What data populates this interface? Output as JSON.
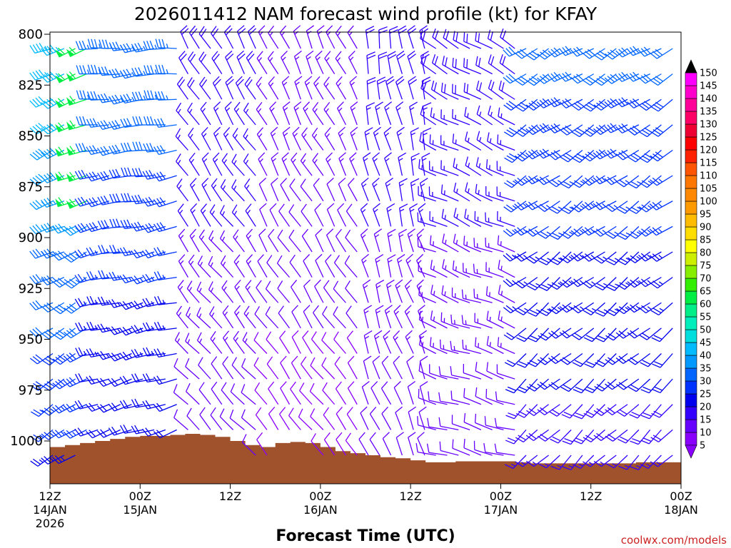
{
  "chart_data": {
    "type": "wind-barb-time-height",
    "title": "2026011412 NAM forecast wind profile (kt) for KFAY",
    "xlabel": "Forecast Time (UTC)",
    "ylabel": "",
    "credit": "coolwx.com/models",
    "x_range_hours": [
      0,
      84
    ],
    "y_range_hpa": [
      800,
      1022
    ],
    "x_ticks": [
      {
        "hour": 0,
        "lines": [
          "12Z",
          "14JAN",
          "2026"
        ]
      },
      {
        "hour": 12,
        "lines": [
          "00Z",
          "15JAN"
        ]
      },
      {
        "hour": 24,
        "lines": [
          "12Z"
        ]
      },
      {
        "hour": 36,
        "lines": [
          "00Z",
          "16JAN"
        ]
      },
      {
        "hour": 48,
        "lines": [
          "12Z"
        ]
      },
      {
        "hour": 60,
        "lines": [
          "00Z",
          "17JAN"
        ]
      },
      {
        "hour": 72,
        "lines": [
          "12Z"
        ]
      },
      {
        "hour": 84,
        "lines": [
          "00Z",
          "18JAN"
        ]
      }
    ],
    "y_ticks": [
      800,
      825,
      850,
      875,
      900,
      925,
      950,
      975,
      1000
    ],
    "colorbar": {
      "units": "kt",
      "levels": [
        5,
        10,
        15,
        20,
        25,
        30,
        35,
        40,
        45,
        50,
        55,
        60,
        65,
        70,
        75,
        80,
        85,
        90,
        95,
        100,
        105,
        110,
        115,
        120,
        125,
        130,
        135,
        140,
        145,
        150
      ],
      "colors": [
        "#8a00ff",
        "#6600ff",
        "#3300ff",
        "#0000ee",
        "#0033ff",
        "#0066ff",
        "#0099ff",
        "#00bbff",
        "#00dddd",
        "#00eebb",
        "#00ee88",
        "#00ee44",
        "#33ee00",
        "#88ee00",
        "#ccee00",
        "#ffff00",
        "#ffdd00",
        "#ffbb00",
        "#ff9900",
        "#ff8800",
        "#ff7700",
        "#ff5500",
        "#ff2200",
        "#ff0000",
        "#ee0033",
        "#ff0066",
        "#ff0099",
        "#ff00cc",
        "#ff00ff",
        "#000000"
      ]
    },
    "surface_pressure_hpa": [
      {
        "hour": 0,
        "p": 1003
      },
      {
        "hour": 2,
        "p": 1002
      },
      {
        "hour": 4,
        "p": 1001
      },
      {
        "hour": 6,
        "p": 1000
      },
      {
        "hour": 8,
        "p": 999
      },
      {
        "hour": 10,
        "p": 998
      },
      {
        "hour": 12,
        "p": 997.5
      },
      {
        "hour": 14,
        "p": 997.5
      },
      {
        "hour": 16,
        "p": 997
      },
      {
        "hour": 18,
        "p": 996.5
      },
      {
        "hour": 20,
        "p": 997
      },
      {
        "hour": 22,
        "p": 998
      },
      {
        "hour": 24,
        "p": 1000
      },
      {
        "hour": 26,
        "p": 1002
      },
      {
        "hour": 28,
        "p": 1003
      },
      {
        "hour": 30,
        "p": 1001
      },
      {
        "hour": 32,
        "p": 1000.5
      },
      {
        "hour": 34,
        "p": 1001
      },
      {
        "hour": 36,
        "p": 1003
      },
      {
        "hour": 38,
        "p": 1005
      },
      {
        "hour": 40,
        "p": 1006
      },
      {
        "hour": 42,
        "p": 1007
      },
      {
        "hour": 44,
        "p": 1008
      },
      {
        "hour": 46,
        "p": 1008.5
      },
      {
        "hour": 48,
        "p": 1009.5
      },
      {
        "hour": 50,
        "p": 1010.5
      },
      {
        "hour": 52,
        "p": 1010.5
      },
      {
        "hour": 54,
        "p": 1010
      },
      {
        "hour": 56,
        "p": 1010
      },
      {
        "hour": 58,
        "p": 1010
      },
      {
        "hour": 60,
        "p": 1010
      },
      {
        "hour": 62,
        "p": 1010.5
      },
      {
        "hour": 64,
        "p": 1011
      },
      {
        "hour": 66,
        "p": 1011
      },
      {
        "hour": 68,
        "p": 1011
      },
      {
        "hour": 70,
        "p": 1011
      },
      {
        "hour": 72,
        "p": 1011
      },
      {
        "hour": 74,
        "p": 1011
      },
      {
        "hour": 76,
        "p": 1011
      },
      {
        "hour": 78,
        "p": 1010.5
      },
      {
        "hour": 80,
        "p": 1010.5
      },
      {
        "hour": 82,
        "p": 1010.5
      },
      {
        "hour": 84,
        "p": 1010.5
      }
    ],
    "wind_regimes": [
      {
        "from_hour": 0,
        "to_hour": 6,
        "dir_deg": 250,
        "speed_kt": 42,
        "jet_speed_kt": 62
      },
      {
        "from_hour": 6,
        "to_hour": 18,
        "dir_deg": 265,
        "speed_kt": 33
      },
      {
        "from_hour": 18,
        "to_hour": 28,
        "dir_deg": 330,
        "speed_kt": 18
      },
      {
        "from_hour": 28,
        "to_hour": 42,
        "dir_deg": 335,
        "speed_kt": 14
      },
      {
        "from_hour": 42,
        "to_hour": 50,
        "dir_deg": 350,
        "speed_kt": 18
      },
      {
        "from_hour": 50,
        "to_hour": 62,
        "dir_deg": 300,
        "speed_kt": 18
      },
      {
        "from_hour": 62,
        "to_hour": 84,
        "dir_deg": 240,
        "speed_kt": 30
      }
    ]
  }
}
